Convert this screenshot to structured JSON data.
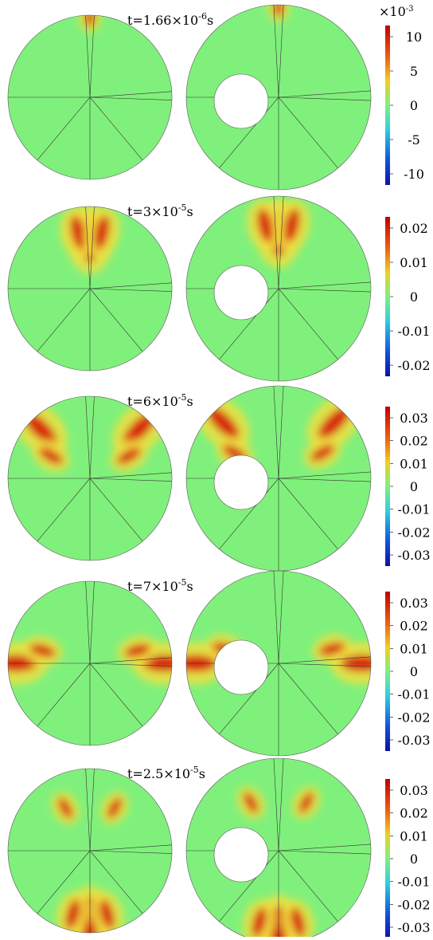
{
  "panels": [
    {
      "title": {
        "prefix": "t=1.66×10",
        "exponent": "-6",
        "suffix": "s"
      },
      "colorbar": {
        "multiplier": {
          "base": "×10",
          "exponent": "-3"
        },
        "ticks": [
          "10",
          "5",
          "0",
          "-5",
          "-10"
        ]
      }
    },
    {
      "title": {
        "prefix": "t=3×10",
        "exponent": "-5",
        "suffix": "s"
      },
      "colorbar": {
        "ticks": [
          "0.02",
          "0.01",
          "0",
          "-0.01",
          "-0.02"
        ]
      }
    },
    {
      "title": {
        "prefix": "t=6×10",
        "exponent": "-5",
        "suffix": "s"
      },
      "colorbar": {
        "ticks": [
          "0.03",
          "0.02",
          "0.01",
          "0",
          "-0.01",
          "-0.02",
          "-0.03"
        ]
      }
    },
    {
      "title": {
        "prefix": "t=7×10",
        "exponent": "-5",
        "suffix": "s"
      },
      "colorbar": {
        "ticks": [
          "0.03",
          "0.02",
          "0.01",
          "0",
          "-0.01",
          "-0.02",
          "-0.03"
        ]
      }
    },
    {
      "title": {
        "prefix": "t=2.5×10",
        "exponent": "-5",
        "suffix": "s"
      },
      "colorbar": {
        "ticks": [
          "0.03",
          "0.02",
          "0.01",
          "0",
          "-0.01",
          "-0.02",
          "-0.03"
        ]
      }
    }
  ]
}
